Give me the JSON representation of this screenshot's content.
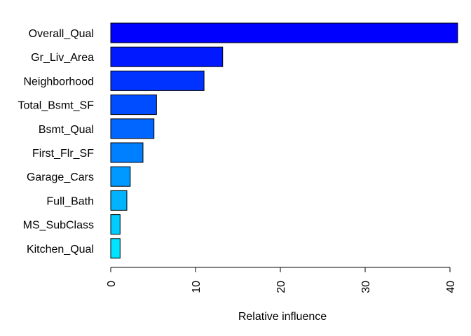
{
  "chart_data": {
    "type": "bar",
    "orientation": "horizontal",
    "categories": [
      "Overall_Qual",
      "Gr_Liv_Area",
      "Neighborhood",
      "Total_Bsmt_SF",
      "Bsmt_Qual",
      "First_Flr_SF",
      "Garage_Cars",
      "Full_Bath",
      "MS_SubClass",
      "Kitchen_Qual"
    ],
    "values": [
      40.9,
      13.2,
      11.0,
      5.4,
      5.1,
      3.8,
      2.3,
      1.9,
      1.1,
      1.1
    ],
    "colors": [
      "#0000ff",
      "#0019ff",
      "#0033ff",
      "#004cff",
      "#0066ff",
      "#0080ff",
      "#0099ff",
      "#00b3ff",
      "#00ccff",
      "#00e5ff"
    ],
    "xlabel": "Relative influence",
    "ylabel": "",
    "title": "",
    "xlim": [
      0,
      41
    ],
    "xticks": [
      0,
      10,
      20,
      30,
      40
    ],
    "grid": false
  }
}
